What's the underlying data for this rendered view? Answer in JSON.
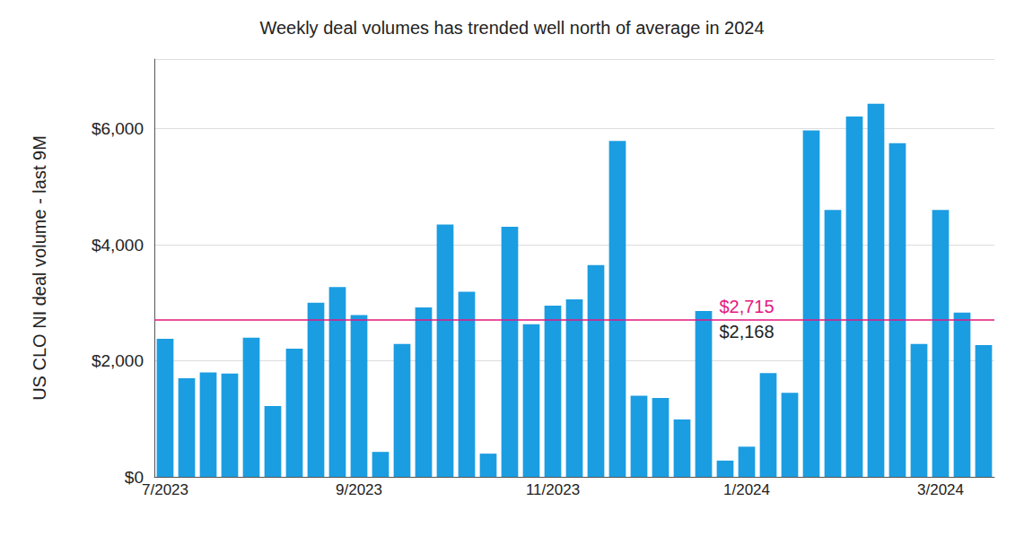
{
  "chart_data": {
    "type": "bar",
    "title": "Weekly deal volumes has trended well north of average in 2024",
    "y_label": "US CLO NI deal volume - last 9M",
    "categories": [
      "7/2023",
      null,
      null,
      null,
      null,
      null,
      null,
      null,
      null,
      "9/2023",
      null,
      null,
      null,
      null,
      null,
      null,
      null,
      null,
      "11/2023",
      null,
      null,
      null,
      null,
      null,
      null,
      null,
      null,
      "1/2024",
      null,
      null,
      null,
      null,
      null,
      null,
      null,
      null,
      "3/2024",
      null,
      null
    ],
    "values": [
      2380,
      1700,
      1800,
      1780,
      2400,
      1220,
      2210,
      3000,
      3270,
      2790,
      430,
      2290,
      2920,
      4350,
      3190,
      400,
      4310,
      2630,
      2950,
      3060,
      3650,
      5790,
      1400,
      1360,
      990,
      2860,
      280,
      520,
      1790,
      1450,
      5970,
      4600,
      6210,
      6430,
      5750,
      2290,
      4600,
      2830,
      2270
    ],
    "color": "#1b9de2",
    "ylim": [
      0,
      7200
    ],
    "yticks": [
      {
        "value": 0,
        "label": "$0"
      },
      {
        "value": 2000,
        "label": "$2,000"
      },
      {
        "value": 4000,
        "label": "$4,000"
      },
      {
        "value": 6000,
        "label": "$6,000"
      }
    ],
    "grid": true,
    "average_line": {
      "value": 2715,
      "label": "$2,715",
      "color": "#e5177e"
    },
    "annotations": [
      {
        "text": "$2,168"
      }
    ]
  }
}
